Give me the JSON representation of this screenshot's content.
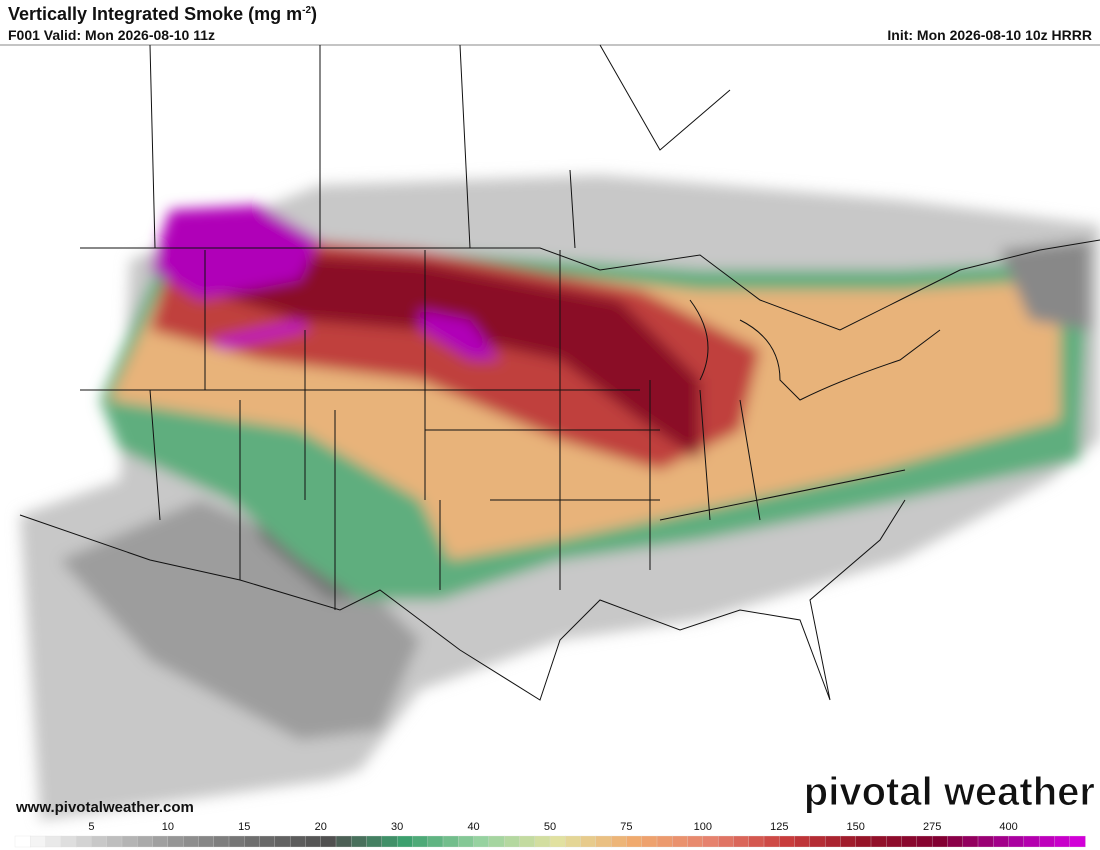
{
  "header": {
    "title": "Vertically Integrated Smoke (mg m",
    "title_sup": "-2",
    "title_end": ")",
    "valid": "F001 Valid: Mon 2026-08-10 11z",
    "init": "Init: Mon 2026-08-10 10z HRRR"
  },
  "footer": {
    "url": "www.pivotalweather.com",
    "brand": "pivotal weather"
  },
  "colorbar": {
    "ticks": [
      "5",
      "10",
      "15",
      "20",
      "30",
      "40",
      "50",
      "75",
      "100",
      "125",
      "150",
      "275",
      "400"
    ]
  }
}
